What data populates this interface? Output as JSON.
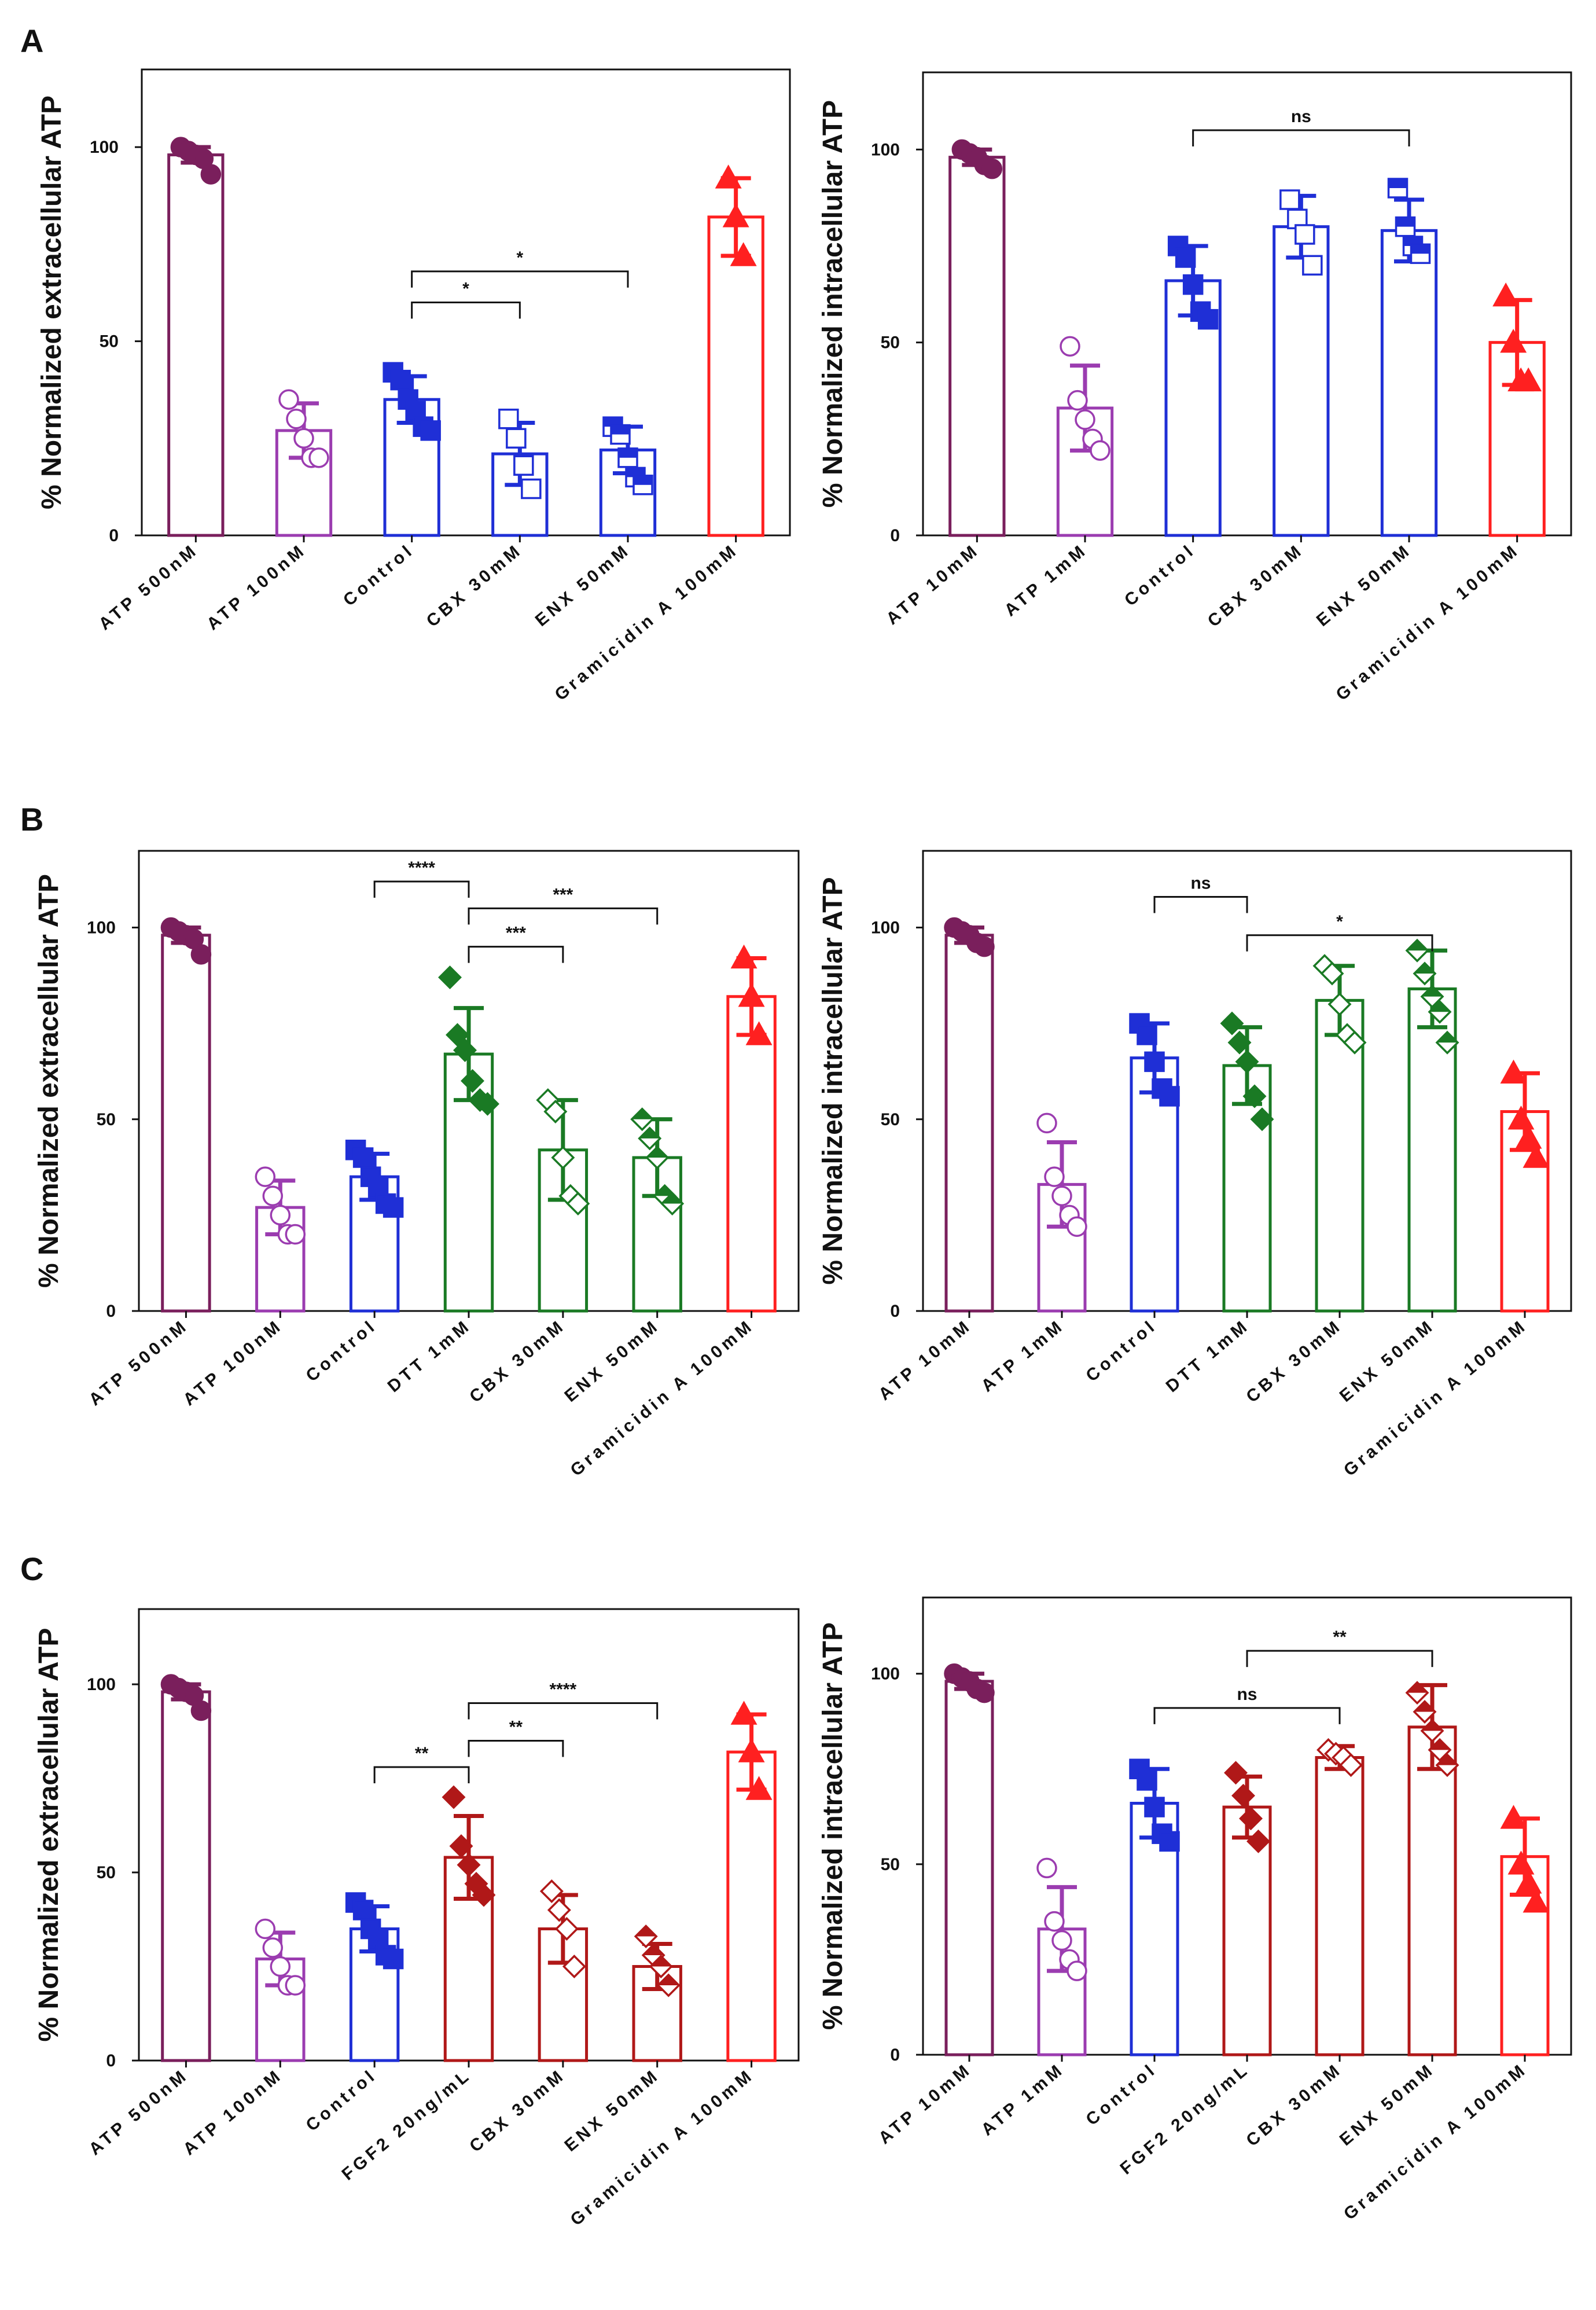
{
  "colors": {
    "atp_high": "#7a1f5c",
    "atp_low": "#9b3cb0",
    "control": "#1f2fd6",
    "dtt": "#1a7a24",
    "fgf2": "#b01818",
    "gramicidin": "#ff2020",
    "axis": "#111111"
  },
  "chart_data": [
    {
      "panel": "A",
      "type": "bar",
      "ylabel": "% Normalized extracellular ATP",
      "ylim": [
        0,
        120
      ],
      "yticks": [
        0,
        50,
        100
      ],
      "categories": [
        "ATP 500nM",
        "ATP 100nM",
        "Control",
        "CBX 30mM",
        "ENX 50mM",
        "Gramicidin A 100mM"
      ],
      "colors": [
        "atp_high",
        "atp_low",
        "control",
        "control",
        "control",
        "gramicidin"
      ],
      "markers": [
        "circle",
        "circle-open",
        "square",
        "square-open",
        "square-mixed",
        "triangle"
      ],
      "values": [
        98,
        27,
        35,
        21,
        22,
        82
      ],
      "errors": [
        2,
        7,
        6,
        8,
        6,
        10
      ],
      "points": [
        [
          100,
          99,
          98,
          97,
          93
        ],
        [
          35,
          30,
          25,
          20,
          20
        ],
        [
          42,
          40,
          35,
          32,
          28,
          27
        ],
        [
          30,
          25,
          18,
          12
        ],
        [
          28,
          26,
          20,
          15,
          13
        ],
        [
          92,
          82,
          72
        ]
      ],
      "sig": [
        {
          "from": 2,
          "to": 3,
          "label": "*",
          "y": 60
        },
        {
          "from": 2,
          "to": 4,
          "label": "*",
          "y": 68
        }
      ]
    },
    {
      "panel": "",
      "type": "bar",
      "ylabel": "% Normalized intracellular ATP",
      "ylim": [
        0,
        120
      ],
      "yticks": [
        0,
        50,
        100
      ],
      "categories": [
        "ATP 10mM",
        "ATP 1mM",
        "Control",
        "CBX 30mM",
        "ENX 50mM",
        "Gramicidin A 100mM"
      ],
      "colors": [
        "atp_high",
        "atp_low",
        "control",
        "control",
        "control",
        "gramicidin"
      ],
      "markers": [
        "circle",
        "circle-open",
        "square",
        "square-open",
        "square-mixed",
        "triangle"
      ],
      "values": [
        98,
        33,
        66,
        80,
        79,
        50
      ],
      "errors": [
        2,
        11,
        9,
        8,
        8,
        11
      ],
      "points": [
        [
          100,
          99,
          98,
          96,
          95
        ],
        [
          49,
          35,
          30,
          25,
          22
        ],
        [
          75,
          72,
          65,
          58,
          56
        ],
        [
          87,
          82,
          78,
          70
        ],
        [
          90,
          80,
          75,
          73
        ],
        [
          62,
          50,
          40,
          40
        ]
      ],
      "sig": [
        {
          "from": 2,
          "to": 4,
          "label": "ns",
          "y": 105
        }
      ]
    },
    {
      "panel": "B",
      "type": "bar",
      "ylabel": "% Normalized extracellular ATP",
      "ylim": [
        0,
        120
      ],
      "yticks": [
        0,
        50,
        100
      ],
      "categories": [
        "ATP 500nM",
        "ATP 100nM",
        "Control",
        "DTT 1mM",
        "CBX 30mM",
        "ENX 50mM",
        "Gramicidin A 100mM"
      ],
      "colors": [
        "atp_high",
        "atp_low",
        "control",
        "dtt",
        "dtt",
        "dtt",
        "gramicidin"
      ],
      "markers": [
        "circle",
        "circle-open",
        "square",
        "diamond",
        "diamond-open",
        "diamond-mixed",
        "triangle"
      ],
      "values": [
        98,
        27,
        35,
        67,
        42,
        40,
        82
      ],
      "errors": [
        2,
        7,
        6,
        12,
        13,
        10,
        10
      ],
      "points": [
        [
          100,
          99,
          98,
          97,
          93
        ],
        [
          35,
          30,
          25,
          20,
          20
        ],
        [
          42,
          40,
          35,
          32,
          28,
          27
        ],
        [
          87,
          72,
          68,
          60,
          55,
          54
        ],
        [
          55,
          52,
          40,
          30,
          28
        ],
        [
          50,
          45,
          40,
          30,
          28
        ],
        [
          92,
          82,
          72
        ]
      ],
      "sig": [
        {
          "from": 2,
          "to": 3,
          "label": "****",
          "y": 112
        },
        {
          "from": 3,
          "to": 4,
          "label": "***",
          "y": 95
        },
        {
          "from": 3,
          "to": 5,
          "label": "***",
          "y": 105
        }
      ]
    },
    {
      "panel": "",
      "type": "bar",
      "ylabel": "% Normalized intracellular ATP",
      "ylim": [
        0,
        120
      ],
      "yticks": [
        0,
        50,
        100
      ],
      "categories": [
        "ATP 10mM",
        "ATP 1mM",
        "Control",
        "DTT 1mM",
        "CBX 30mM",
        "ENX 50mM",
        "Gramicidin A 100mM"
      ],
      "colors": [
        "atp_high",
        "atp_low",
        "control",
        "dtt",
        "dtt",
        "dtt",
        "gramicidin"
      ],
      "markers": [
        "circle",
        "circle-open",
        "square",
        "diamond",
        "diamond-open",
        "diamond-mixed",
        "triangle"
      ],
      "values": [
        98,
        33,
        66,
        64,
        81,
        84,
        52
      ],
      "errors": [
        2,
        11,
        9,
        10,
        9,
        10,
        10
      ],
      "points": [
        [
          100,
          99,
          98,
          96,
          95
        ],
        [
          49,
          35,
          30,
          25,
          22
        ],
        [
          75,
          72,
          65,
          58,
          56
        ],
        [
          75,
          70,
          65,
          56,
          50
        ],
        [
          90,
          88,
          80,
          72,
          70
        ],
        [
          94,
          88,
          82,
          78,
          70
        ],
        [
          62,
          50,
          45,
          40
        ]
      ],
      "sig": [
        {
          "from": 2,
          "to": 3,
          "label": "ns",
          "y": 108
        },
        {
          "from": 3,
          "to": 5,
          "label": "*",
          "y": 98
        }
      ]
    },
    {
      "panel": "C",
      "type": "bar",
      "ylabel": "% Normalized extracellular ATP",
      "ylim": [
        0,
        120
      ],
      "yticks": [
        0,
        50,
        100
      ],
      "categories": [
        "ATP 500nM",
        "ATP 100nM",
        "Control",
        "FGF2 20ng/mL",
        "CBX 30mM",
        "ENX 50mM",
        "Gramicidin A 100mM"
      ],
      "colors": [
        "atp_high",
        "atp_low",
        "control",
        "fgf2",
        "fgf2",
        "fgf2",
        "gramicidin"
      ],
      "markers": [
        "circle",
        "circle-open",
        "square",
        "diamond",
        "diamond-open",
        "diamond-mixed",
        "triangle"
      ],
      "values": [
        98,
        27,
        35,
        54,
        35,
        25,
        82
      ],
      "errors": [
        2,
        7,
        6,
        11,
        9,
        6,
        10
      ],
      "points": [
        [
          100,
          99,
          98,
          97,
          93
        ],
        [
          35,
          30,
          25,
          20,
          20
        ],
        [
          42,
          40,
          35,
          32,
          28,
          27
        ],
        [
          70,
          57,
          52,
          47,
          44
        ],
        [
          45,
          40,
          35,
          25
        ],
        [
          33,
          28,
          25,
          20
        ],
        [
          92,
          82,
          72
        ]
      ],
      "sig": [
        {
          "from": 2,
          "to": 3,
          "label": "**",
          "y": 78
        },
        {
          "from": 3,
          "to": 4,
          "label": "**",
          "y": 85
        },
        {
          "from": 3,
          "to": 5,
          "label": "****",
          "y": 95
        }
      ]
    },
    {
      "panel": "",
      "type": "bar",
      "ylabel": "% Normalized intracellular ATP",
      "ylim": [
        0,
        120
      ],
      "yticks": [
        0,
        50,
        100
      ],
      "categories": [
        "ATP 10mM",
        "ATP 1mM",
        "Control",
        "FGF2 20ng/mL",
        "CBX 30mM",
        "ENX 50mM",
        "Gramicidin A 100mM"
      ],
      "colors": [
        "atp_high",
        "atp_low",
        "control",
        "fgf2",
        "fgf2",
        "fgf2",
        "gramicidin"
      ],
      "markers": [
        "circle",
        "circle-open",
        "square",
        "diamond",
        "diamond-open",
        "diamond-mixed",
        "triangle"
      ],
      "values": [
        98,
        33,
        66,
        65,
        78,
        86,
        52
      ],
      "errors": [
        2,
        11,
        9,
        8,
        3,
        11,
        10
      ],
      "points": [
        [
          100,
          99,
          98,
          96,
          95
        ],
        [
          49,
          35,
          30,
          25,
          22
        ],
        [
          75,
          72,
          65,
          58,
          56
        ],
        [
          74,
          68,
          62,
          56
        ],
        [
          80,
          79,
          78,
          76
        ],
        [
          95,
          90,
          85,
          80,
          76
        ],
        [
          62,
          50,
          45,
          40
        ]
      ],
      "sig": [
        {
          "from": 2,
          "to": 4,
          "label": "ns",
          "y": 91
        },
        {
          "from": 3,
          "to": 5,
          "label": "**",
          "y": 106
        }
      ]
    }
  ]
}
